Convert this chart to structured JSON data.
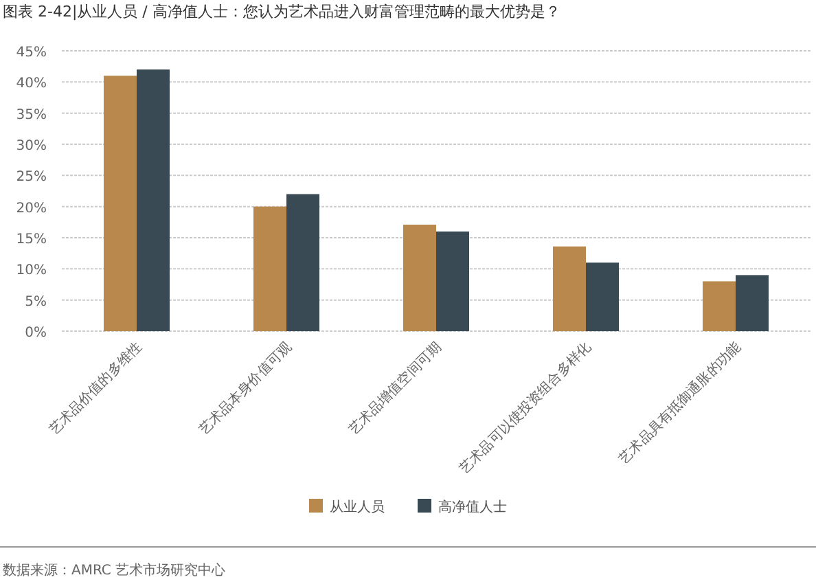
{
  "chart_data": {
    "type": "bar",
    "title": "图表 2-42|从业人员 / 高净值人士：您认为艺术品进入财富管理范畴的最大优势是？",
    "categories": [
      "艺术品价值的多维性",
      "艺术品本身价值可观",
      "艺术品增值空间可期",
      "艺术品可以使投资组合多样化",
      "艺术品具有抵御通胀的功能"
    ],
    "series": [
      {
        "name": "从业人员",
        "color": "#b8884c",
        "values": [
          41,
          20,
          17.1,
          13.6,
          8
        ]
      },
      {
        "name": "高净值人士",
        "color": "#3a4a55",
        "values": [
          42,
          22,
          16,
          11,
          9
        ]
      }
    ],
    "ylim": [
      0,
      45
    ],
    "yticks": [
      {
        "value": 0,
        "label": "0%"
      },
      {
        "value": 5,
        "label": "5%"
      },
      {
        "value": 10,
        "label": "10%"
      },
      {
        "value": 15,
        "label": "15%"
      },
      {
        "value": 20,
        "label": "20%"
      },
      {
        "value": 25,
        "label": "25%"
      },
      {
        "value": 30,
        "label": "30%"
      },
      {
        "value": 35,
        "label": "35%"
      },
      {
        "value": 40,
        "label": "40%"
      },
      {
        "value": 45,
        "label": "45%"
      }
    ],
    "grid": "y",
    "legend": "bottom",
    "annotations": [
      "数据来源：AMRC 艺术市场研究中心"
    ]
  }
}
